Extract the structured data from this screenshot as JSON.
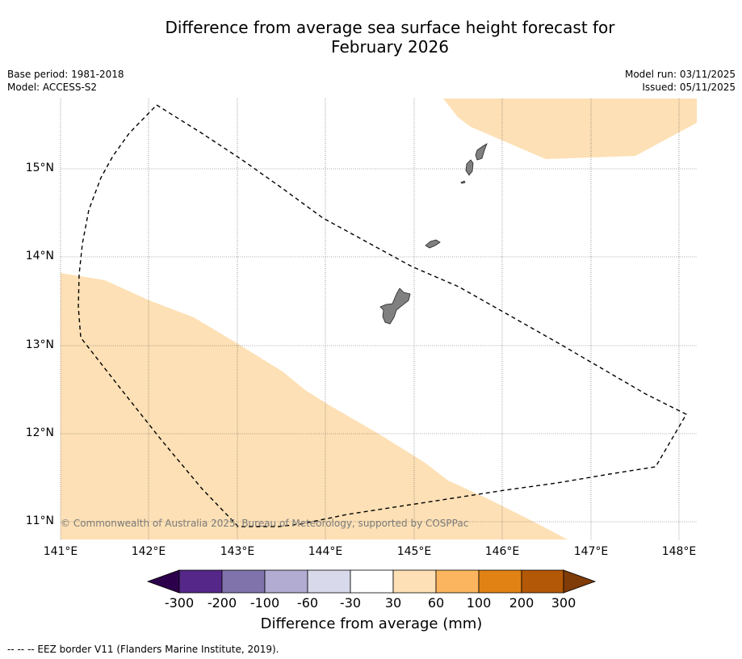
{
  "title": {
    "line1": "Difference from average sea surface height forecast for",
    "line2": "February 2026"
  },
  "meta": {
    "base_period": "Base period: 1981-2018",
    "model": "Model: ACCESS-S2",
    "model_run": "Model run: 03/11/2025",
    "issued": "Issued: 05/11/2025"
  },
  "map": {
    "lat_labels": [
      "15°N",
      "14°N",
      "13°N",
      "12°N",
      "11°N"
    ],
    "lon_labels": [
      "141°E",
      "142°E",
      "143°E",
      "144°E",
      "145°E",
      "146°E",
      "147°E",
      "148°E"
    ],
    "lon_range": [
      141,
      148.2
    ],
    "lat_range": [
      10.8,
      15.8
    ],
    "copyright": "© Commonwealth of Australia 2025, Bureau of Meteorology, supported by COSPPac",
    "colors": {
      "anomaly_30_60": "#fde0b5",
      "land": "#808080",
      "eez_border": "#000000"
    }
  },
  "colorbar": {
    "ticks": [
      "-300",
      "-200",
      "-100",
      "-60",
      "-30",
      "30",
      "60",
      "100",
      "200",
      "300"
    ],
    "colors": [
      "#2d004b",
      "#542788",
      "#8073ac",
      "#b2abd2",
      "#d8daeb",
      "#ffffff",
      "#fde0b5",
      "#fbb55e",
      "#e08214",
      "#b35806",
      "#7f3b08"
    ],
    "label": "Difference from average (mm)"
  },
  "footnote": "--  --  -- EEZ border V11 (Flanders Marine Institute, 2019)."
}
